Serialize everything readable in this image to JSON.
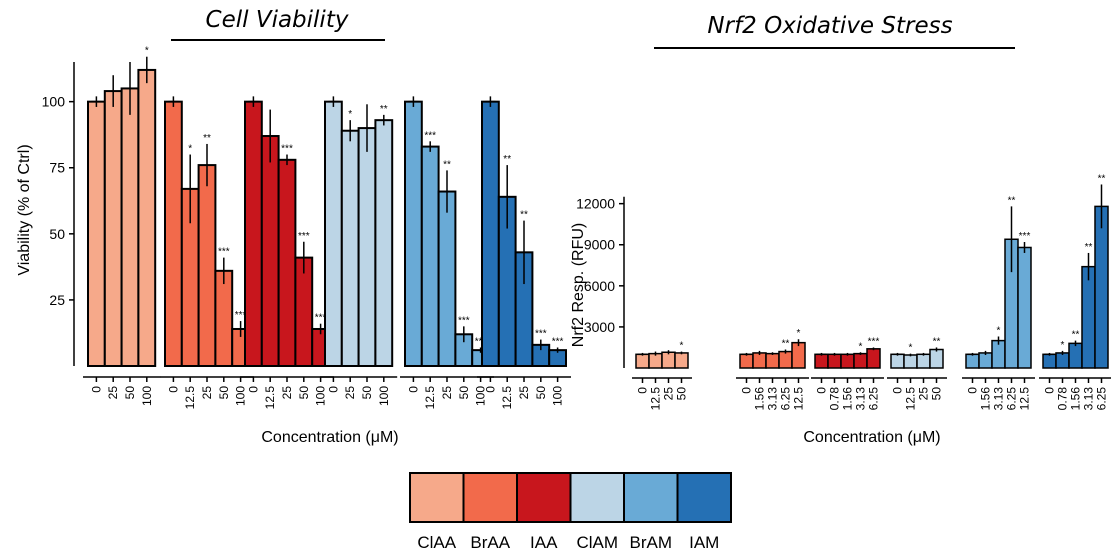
{
  "chart_data": [
    {
      "type": "bar",
      "title": "Cell Viability",
      "xlabel": "Concentration (μM)",
      "ylabel": "Viability (% of Ctrl)",
      "ylim": [
        0,
        115
      ],
      "yticks": [
        25,
        50,
        75,
        100
      ],
      "grid": false,
      "groups": [
        {
          "name": "ClAA",
          "color": "#f6a98a",
          "categories": [
            "0",
            "25",
            "50",
            "100"
          ],
          "values": [
            100,
            104,
            105,
            112
          ],
          "errors": [
            2,
            6,
            10,
            5
          ],
          "sig": [
            "",
            "",
            "",
            "*"
          ]
        },
        {
          "name": "BrAA",
          "color": "#f26a4b",
          "categories": [
            "0",
            "12.5",
            "25",
            "50",
            "100"
          ],
          "values": [
            100,
            67,
            76,
            36,
            14
          ],
          "errors": [
            2,
            13,
            8,
            5,
            3
          ],
          "sig": [
            "",
            "*",
            "**",
            "***",
            "***"
          ]
        },
        {
          "name": "IAA",
          "color": "#c8161d",
          "categories": [
            "0",
            "12.5",
            "25",
            "50",
            "100"
          ],
          "values": [
            100,
            87,
            78,
            41,
            14
          ],
          "errors": [
            2,
            10,
            2,
            6,
            2
          ],
          "sig": [
            "",
            "",
            "***",
            "***",
            "***"
          ]
        },
        {
          "name": "ClAM",
          "color": "#bcd5e6",
          "categories": [
            "0",
            "25",
            "50",
            "100"
          ],
          "values": [
            100,
            89,
            90,
            93
          ],
          "errors": [
            2,
            4,
            9,
            2
          ],
          "sig": [
            "",
            "*",
            "",
            "**"
          ]
        },
        {
          "name": "BrAM",
          "color": "#69aad6",
          "categories": [
            "0",
            "12.5",
            "25",
            "50",
            "100"
          ],
          "values": [
            100,
            83,
            66,
            12,
            6
          ],
          "errors": [
            2,
            2,
            8,
            3,
            1
          ],
          "sig": [
            "",
            "***",
            "**",
            "***",
            "***"
          ]
        },
        {
          "name": "IAM",
          "color": "#2570b4",
          "categories": [
            "0",
            "12.5",
            "25",
            "50",
            "100"
          ],
          "values": [
            100,
            64,
            43,
            8,
            6
          ],
          "errors": [
            2,
            12,
            12,
            2,
            1
          ],
          "sig": [
            "",
            "**",
            "**",
            "***",
            "***"
          ]
        }
      ]
    },
    {
      "type": "bar",
      "title": "Nrf2 Oxidative Stress",
      "xlabel": "Concentration (μM)",
      "ylabel": "Nrf2 Resp. (RFU)",
      "ylim": [
        0,
        13800
      ],
      "yticks": [
        3000,
        6000,
        9000,
        12000
      ],
      "grid": false,
      "groups": [
        {
          "name": "ClAA",
          "color": "#f6a98a",
          "categories": [
            "0",
            "12.5",
            "25",
            "50"
          ],
          "values": [
            1000,
            1050,
            1150,
            1100
          ],
          "errors": [
            100,
            150,
            150,
            100
          ],
          "sig": [
            "",
            "",
            "",
            "*"
          ]
        },
        {
          "name": "BrAA",
          "color": "#f26a4b",
          "categories": [
            "0",
            "1.56",
            "3.13",
            "6.25",
            "12.5"
          ],
          "values": [
            1000,
            1100,
            1050,
            1200,
            1850
          ],
          "errors": [
            100,
            150,
            100,
            150,
            250
          ],
          "sig": [
            "",
            "",
            "",
            "**",
            "*"
          ]
        },
        {
          "name": "IAA",
          "color": "#c8161d",
          "categories": [
            "0",
            "0.78",
            "1.56",
            "3.13",
            "6.25"
          ],
          "values": [
            1000,
            1000,
            1000,
            1050,
            1400
          ],
          "errors": [
            100,
            100,
            100,
            100,
            100
          ],
          "sig": [
            "",
            "",
            "",
            "*",
            "***"
          ]
        },
        {
          "name": "ClAM",
          "color": "#bcd5e6",
          "categories": [
            "0",
            "12.5",
            "25",
            "50"
          ],
          "values": [
            1000,
            950,
            1000,
            1350
          ],
          "errors": [
            100,
            100,
            100,
            150
          ],
          "sig": [
            "",
            "*",
            "",
            "**"
          ]
        },
        {
          "name": "BrAM",
          "color": "#69aad6",
          "categories": [
            "0",
            "1.56",
            "3.13",
            "6.25",
            "12.5"
          ],
          "values": [
            1000,
            1100,
            2000,
            9400,
            8800
          ],
          "errors": [
            100,
            150,
            300,
            2400,
            400
          ],
          "sig": [
            "",
            "",
            "*",
            "**",
            "***"
          ]
        },
        {
          "name": "IAM",
          "color": "#2570b4",
          "categories": [
            "0",
            "0.78",
            "1.56",
            "3.13",
            "6.25"
          ],
          "values": [
            1000,
            1100,
            1800,
            7400,
            11800
          ],
          "errors": [
            100,
            150,
            200,
            1000,
            1600
          ],
          "sig": [
            "",
            "*",
            "**",
            "**",
            "**"
          ]
        }
      ]
    }
  ],
  "legend": {
    "placement": "bottom-center",
    "items": [
      {
        "label": "ClAA",
        "color": "#f6a98a"
      },
      {
        "label": "BrAA",
        "color": "#f26a4b"
      },
      {
        "label": "IAA",
        "color": "#c8161d"
      },
      {
        "label": "ClAM",
        "color": "#bcd5e6"
      },
      {
        "label": "BrAM",
        "color": "#69aad6"
      },
      {
        "label": "IAM",
        "color": "#2570b4"
      }
    ]
  }
}
